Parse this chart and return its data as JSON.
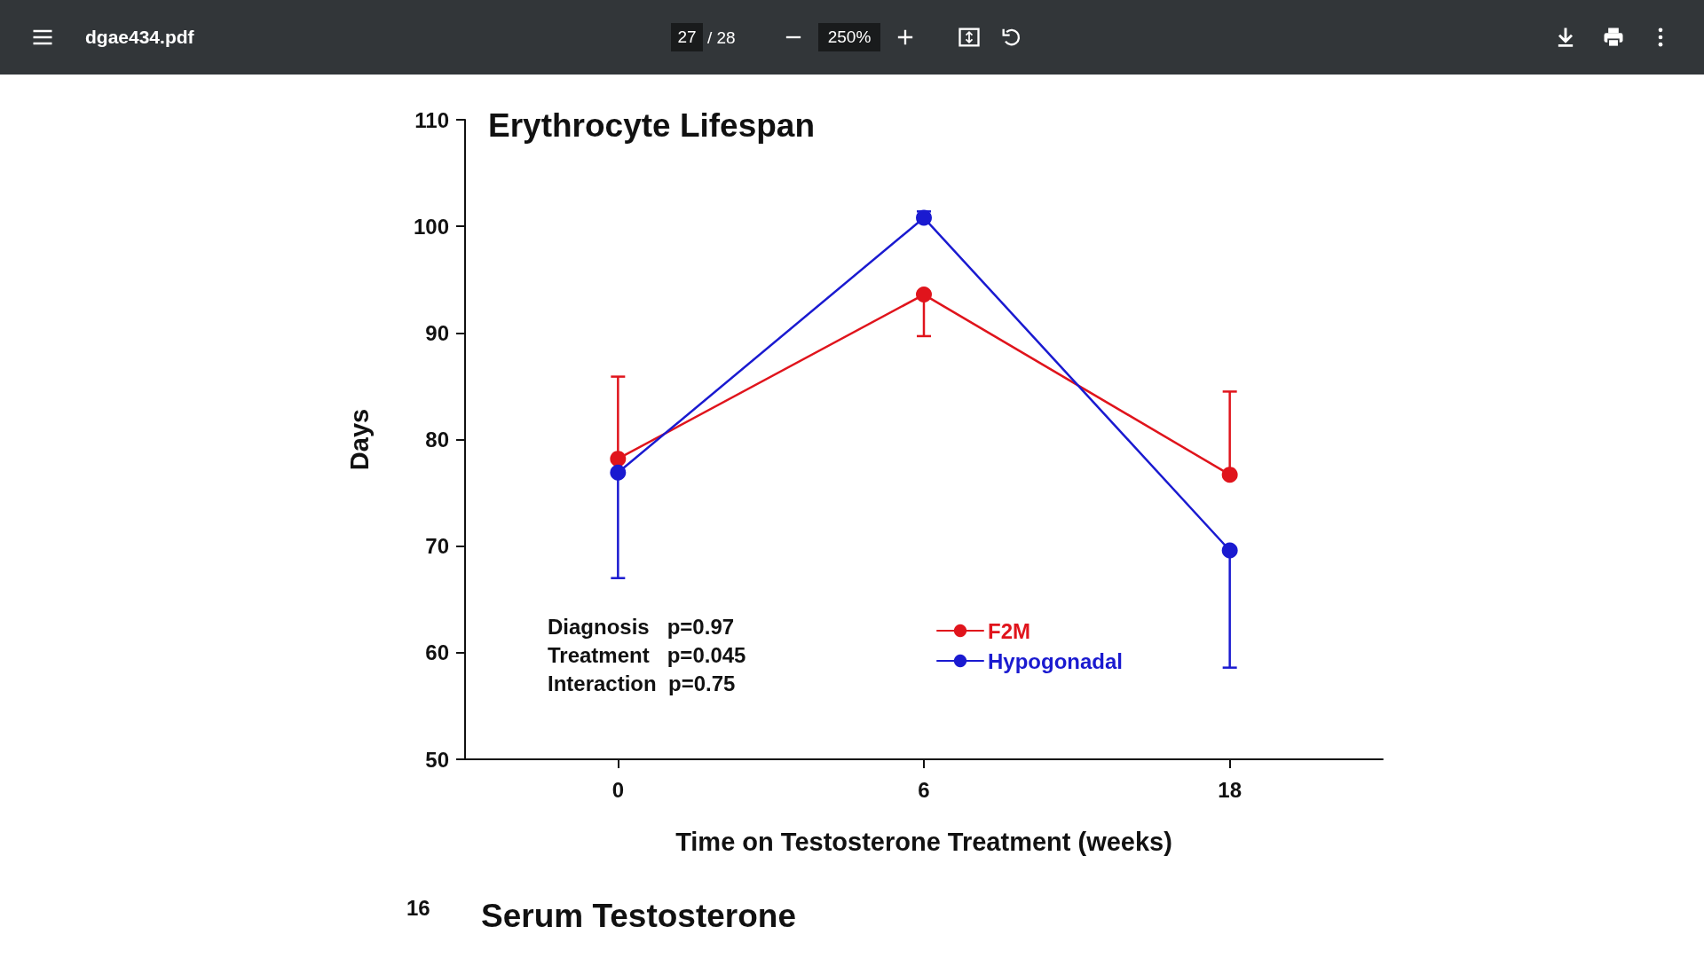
{
  "chart_data": {
    "type": "line",
    "title": "Erythrocyte Lifespan",
    "xlabel": "Time on Testosterone Treatment (weeks)",
    "ylabel": "Days",
    "categories": [
      "0",
      "6",
      "18"
    ],
    "series": [
      {
        "name": "F2M",
        "color": "#e0141c",
        "values": [
          78.2,
          93.6,
          76.7
        ],
        "errors": [
          [
            78.2,
            85.9
          ],
          [
            89.7,
            93.6
          ],
          [
            76.7,
            84.5
          ]
        ]
      },
      {
        "name": "Hypogonadal",
        "color": "#1a1ad0",
        "values": [
          76.9,
          100.8,
          69.6
        ],
        "errors": [
          [
            67.0,
            76.9
          ],
          [
            100.8,
            101.4
          ],
          [
            58.6,
            69.6
          ]
        ]
      }
    ],
    "ylim": [
      50,
      110
    ],
    "yticks": [
      50,
      60,
      70,
      80,
      90,
      100,
      110
    ],
    "grid": false,
    "legend": "bottom",
    "marker": "circle",
    "line_style": "solid",
    "annotations": [
      "Diagnosis   p=0.97",
      "Treatment   p=0.045",
      "Interaction  p=0.75",
      "dgae434.pdf",
      "27",
      "/ 28",
      "250%",
      "16",
      "Serum Testosterone"
    ]
  }
}
